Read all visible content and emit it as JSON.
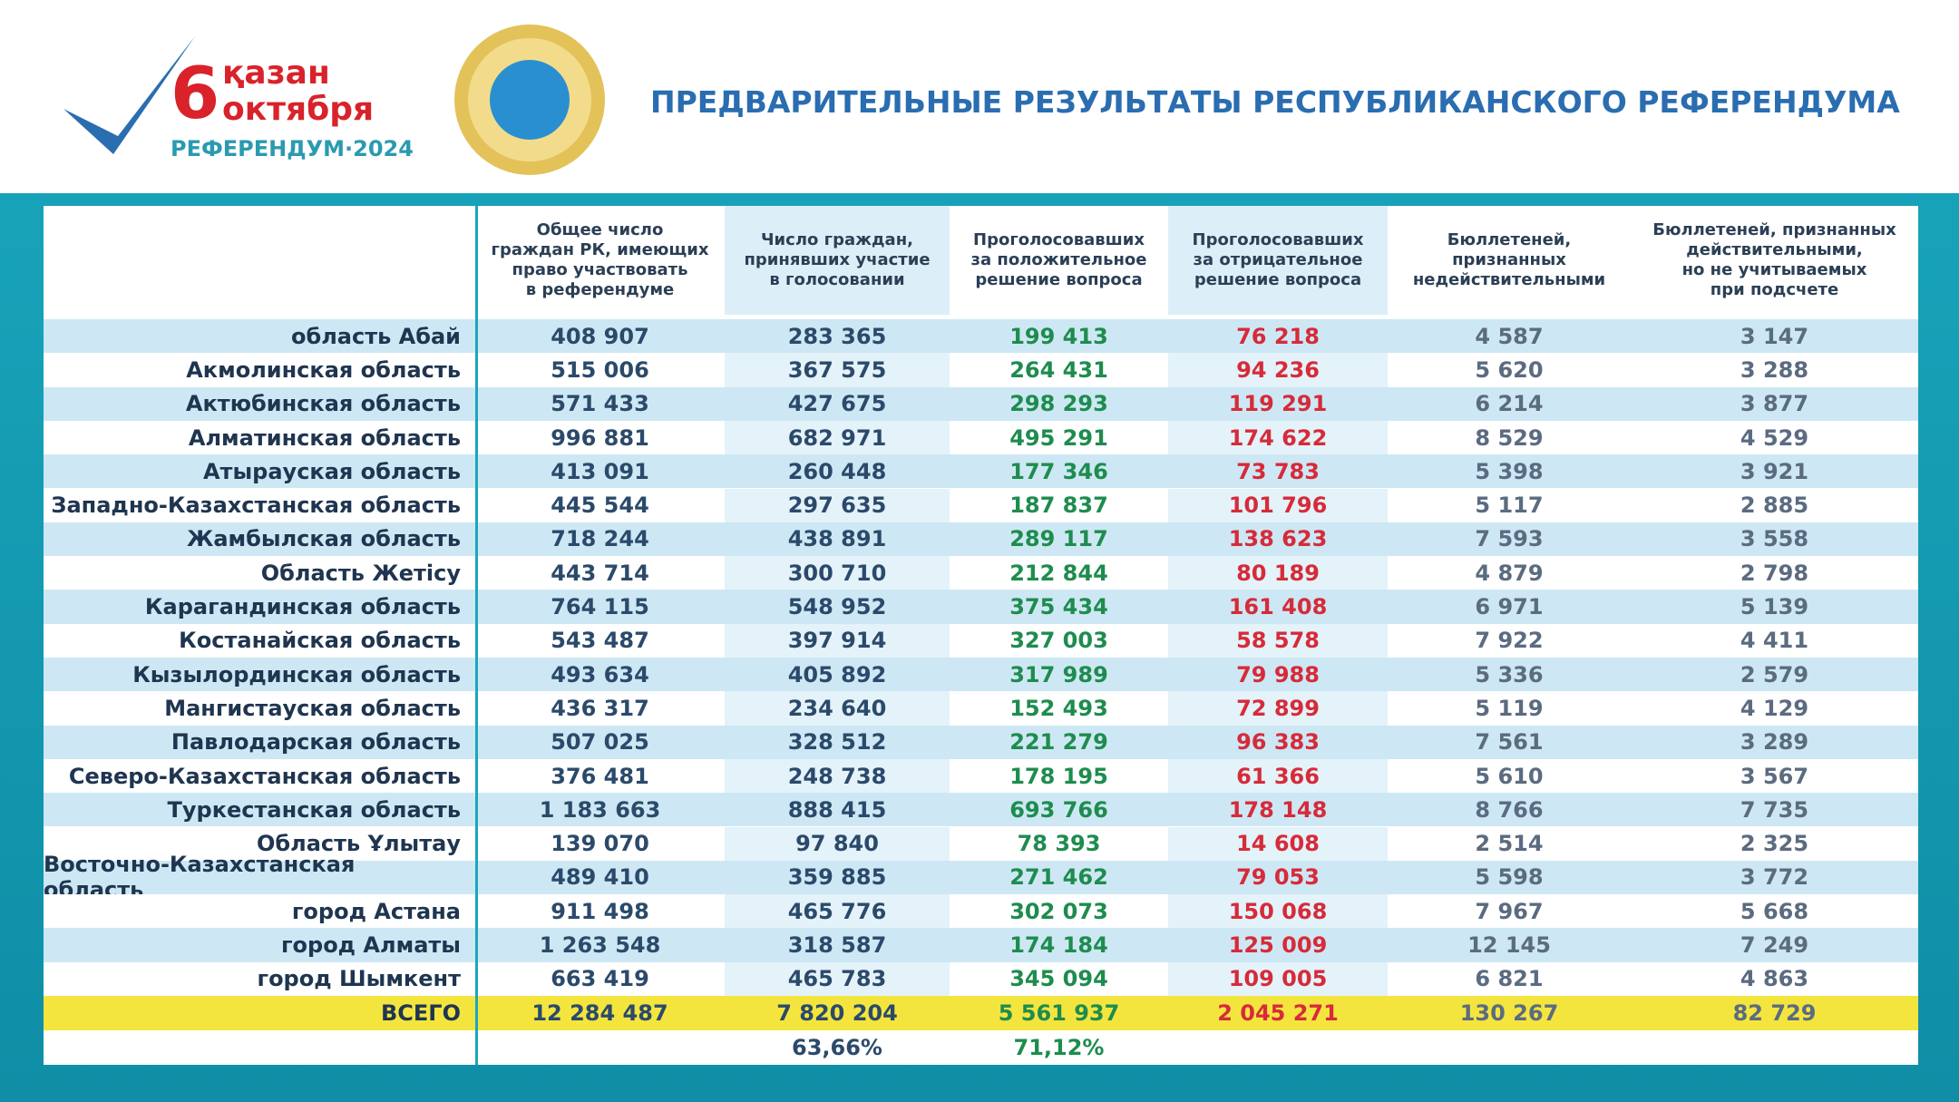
{
  "header": {
    "logo": {
      "day": "6",
      "month_kk": "қазан",
      "month_ru": "октября",
      "caption": "РЕФЕРЕНДУМ·2024"
    },
    "title": "ПРЕДВАРИТЕЛЬНЫЕ РЕЗУЛЬТАТЫ РЕСПУБЛИКАНСКОГО РЕФЕРЕНДУМА"
  },
  "table": {
    "columns": [
      "Общее число\nграждан РК, имеющих\nправо участвовать\nв референдуме",
      "Число граждан,\nпринявших участие\nв голосовании",
      "Проголосовавших\nза положительное\nрешение вопроса",
      "Проголосовавших\nза отрицательное\nрешение вопроса",
      "Бюллетеней,\nпризнанных\nнедействительными",
      "Бюллетеней, признанных\nдействительными,\nно не учитываемых\nпри подсчете"
    ],
    "rows": [
      [
        "область Абай",
        "408 907",
        "283 365",
        "199 413",
        "76 218",
        "4 587",
        "3 147"
      ],
      [
        "Акмолинская область",
        "515 006",
        "367 575",
        "264 431",
        "94 236",
        "5 620",
        "3 288"
      ],
      [
        "Актюбинская область",
        "571 433",
        "427 675",
        "298 293",
        "119 291",
        "6 214",
        "3 877"
      ],
      [
        "Алматинская область",
        "996 881",
        "682 971",
        "495 291",
        "174 622",
        "8 529",
        "4 529"
      ],
      [
        "Атырауская область",
        "413 091",
        "260 448",
        "177 346",
        "73 783",
        "5 398",
        "3 921"
      ],
      [
        "Западно-Казахстанская область",
        "445 544",
        "297 635",
        "187 837",
        "101 796",
        "5 117",
        "2 885"
      ],
      [
        "Жамбылская область",
        "718 244",
        "438 891",
        "289 117",
        "138 623",
        "7 593",
        "3 558"
      ],
      [
        "Область Жетісу",
        "443 714",
        "300 710",
        "212 844",
        "80 189",
        "4 879",
        "2 798"
      ],
      [
        "Карагандинская область",
        "764 115",
        "548 952",
        "375 434",
        "161 408",
        "6 971",
        "5 139"
      ],
      [
        "Костанайская область",
        "543 487",
        "397 914",
        "327 003",
        "58 578",
        "7 922",
        "4 411"
      ],
      [
        "Кызылординская область",
        "493 634",
        "405 892",
        "317 989",
        "79 988",
        "5 336",
        "2 579"
      ],
      [
        "Мангистауская область",
        "436 317",
        "234 640",
        "152 493",
        "72 899",
        "5 119",
        "4 129"
      ],
      [
        "Павлодарская область",
        "507 025",
        "328 512",
        "221 279",
        "96 383",
        "7 561",
        "3 289"
      ],
      [
        "Северо-Казахстанская область",
        "376 481",
        "248 738",
        "178 195",
        "61 366",
        "5 610",
        "3 567"
      ],
      [
        "Туркестанская область",
        "1 183 663",
        "888 415",
        "693 766",
        "178 148",
        "8 766",
        "7 735"
      ],
      [
        "Область Ұлытау",
        "139 070",
        "97 840",
        "78 393",
        "14 608",
        "2 514",
        "2 325"
      ],
      [
        "Восточно-Казахстанская область",
        "489 410",
        "359 885",
        "271 462",
        "79 053",
        "5 598",
        "3 772"
      ],
      [
        "город Астана",
        "911 498",
        "465 776",
        "302 073",
        "150 068",
        "7 967",
        "5 668"
      ],
      [
        "город Алматы",
        "1 263 548",
        "318 587",
        "174 184",
        "125 009",
        "12 145",
        "7 249"
      ],
      [
        "город Шымкент",
        "663 419",
        "465 783",
        "345 094",
        "109 005",
        "6 821",
        "4 863"
      ]
    ],
    "total": [
      "ВСЕГО",
      "12 284 487",
      "7 820 204",
      "5 561 937",
      "2 045 271",
      "130 267",
      "82 729"
    ],
    "footer": [
      "63,66%",
      "71,12%"
    ]
  }
}
